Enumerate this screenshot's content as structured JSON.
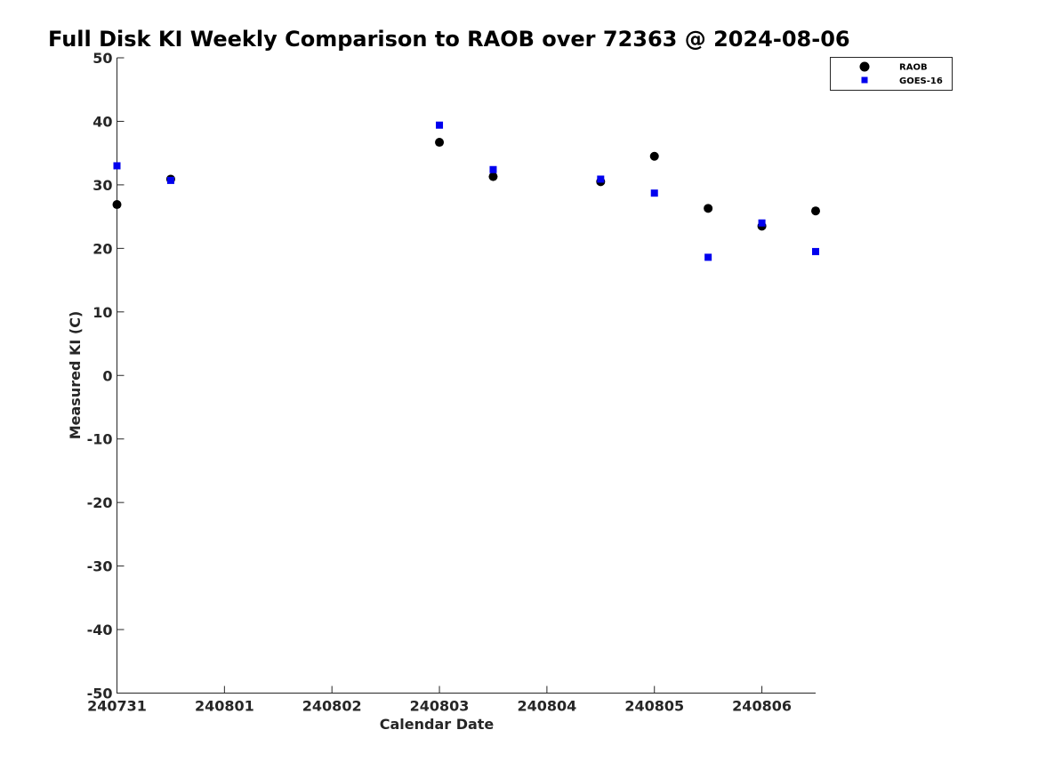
{
  "chart_data": {
    "type": "scatter",
    "title": "Full Disk KI Weekly Comparison to RAOB over 72363 @ 2024-08-06",
    "xlabel": "Calendar Date",
    "ylabel": "Measured KI (C)",
    "xlim": [
      0,
      6.5
    ],
    "ylim": [
      -50,
      50
    ],
    "x_ticks": [
      {
        "value": 0,
        "label": "240731"
      },
      {
        "value": 1,
        "label": "240801"
      },
      {
        "value": 2,
        "label": "240802"
      },
      {
        "value": 3,
        "label": "240803"
      },
      {
        "value": 4,
        "label": "240804"
      },
      {
        "value": 5,
        "label": "240805"
      },
      {
        "value": 6,
        "label": "240806"
      }
    ],
    "y_ticks": [
      {
        "value": 50,
        "label": "50"
      },
      {
        "value": 40,
        "label": "40"
      },
      {
        "value": 30,
        "label": "30"
      },
      {
        "value": 20,
        "label": "20"
      },
      {
        "value": 10,
        "label": "10"
      },
      {
        "value": 0,
        "label": "0"
      },
      {
        "value": -10,
        "label": "-10"
      },
      {
        "value": -20,
        "label": "-20"
      },
      {
        "value": -30,
        "label": "-30"
      },
      {
        "value": -40,
        "label": "-40"
      },
      {
        "value": -50,
        "label": "-50"
      }
    ],
    "grid": false,
    "legend_position": "top-right",
    "series": [
      {
        "name": "RAOB",
        "marker": "circle",
        "color": "#000000",
        "points": [
          {
            "x": 0.0,
            "y": 26.9
          },
          {
            "x": 0.5,
            "y": 30.9
          },
          {
            "x": 3.0,
            "y": 36.7
          },
          {
            "x": 3.5,
            "y": 31.3
          },
          {
            "x": 4.5,
            "y": 30.5
          },
          {
            "x": 5.0,
            "y": 34.5
          },
          {
            "x": 5.5,
            "y": 26.3
          },
          {
            "x": 6.0,
            "y": 23.5
          },
          {
            "x": 6.5,
            "y": 25.9
          }
        ]
      },
      {
        "name": "GOES-16",
        "marker": "square",
        "color": "#0000ee",
        "points": [
          {
            "x": 0.0,
            "y": 33.0
          },
          {
            "x": 0.5,
            "y": 30.7
          },
          {
            "x": 3.0,
            "y": 39.4
          },
          {
            "x": 3.5,
            "y": 32.4
          },
          {
            "x": 4.5,
            "y": 30.9
          },
          {
            "x": 5.0,
            "y": 28.7
          },
          {
            "x": 5.5,
            "y": 18.6
          },
          {
            "x": 6.0,
            "y": 24.0
          },
          {
            "x": 6.5,
            "y": 19.5
          }
        ]
      }
    ]
  }
}
